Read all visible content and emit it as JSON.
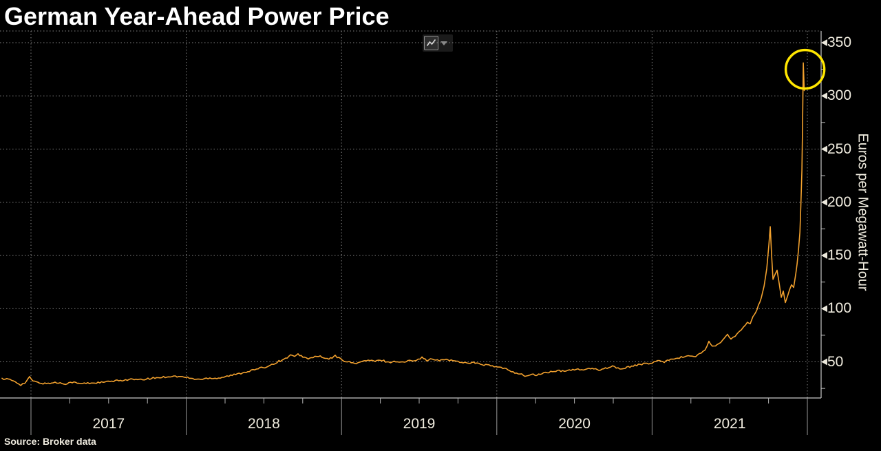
{
  "header": {
    "title": "German Year-Ahead Power Price"
  },
  "toolbar": {
    "chart_type_button": "line-chart-type-selector",
    "icons": [
      "line-chart-icon",
      "chevron-down-icon"
    ]
  },
  "footer": {
    "source": "Source: Broker data"
  },
  "colors": {
    "background": "#000000",
    "line": "#f2a12e",
    "highlight_circle": "#ffe600",
    "axis": "#c9c9c9",
    "grid": "#858585",
    "label": "#f0ecdf",
    "title": "#ffffff"
  },
  "chart_data": {
    "type": "line",
    "title": "German Year-Ahead Power Price",
    "xlabel": "",
    "ylabel": "Euros per Megawatt-Hour",
    "source": "Source: Broker data",
    "grid": "dotted",
    "legend": "none",
    "xlim": [
      2016.8,
      2022.09
    ],
    "ylim": [
      15,
      360
    ],
    "x_year_boundaries": [
      2017,
      2018,
      2019,
      2020,
      2021,
      2022
    ],
    "x_tick_labels": [
      "2017",
      "2018",
      "2019",
      "2020",
      "2021"
    ],
    "x_minor_ticks_per_year": 3,
    "y_ticks": [
      50,
      100,
      150,
      200,
      250,
      300,
      350
    ],
    "y_minor_ticks": [
      25,
      75,
      125,
      175,
      225,
      275,
      325
    ],
    "annotation": {
      "type": "circle",
      "x": 2021.985,
      "value": 325,
      "radius_px": 28,
      "note": "highlights final price spike ~331 EUR"
    },
    "series": [
      {
        "name": "German year-ahead power price (EUR/MWh)",
        "points": [
          [
            2016.814,
            34.5
          ],
          [
            2016.854,
            33.5
          ],
          [
            2016.898,
            31.5
          ],
          [
            2016.934,
            28.5
          ],
          [
            2016.96,
            30
          ],
          [
            2016.991,
            35.5
          ],
          [
            2017.013,
            32
          ],
          [
            2017.044,
            30.5
          ],
          [
            2017.089,
            29.5
          ],
          [
            2017.155,
            30.5
          ],
          [
            2017.222,
            29.5
          ],
          [
            2017.266,
            31
          ],
          [
            2017.31,
            29.5
          ],
          [
            2017.377,
            30
          ],
          [
            2017.443,
            30.5
          ],
          [
            2017.51,
            31.5
          ],
          [
            2017.576,
            32.5
          ],
          [
            2017.643,
            33.5
          ],
          [
            2017.709,
            33
          ],
          [
            2017.776,
            34.5
          ],
          [
            2017.842,
            35.5
          ],
          [
            2017.909,
            36.5
          ],
          [
            2017.962,
            36
          ],
          [
            2017.997,
            35.5
          ],
          [
            2018.042,
            34
          ],
          [
            2018.095,
            33.5
          ],
          [
            2018.152,
            35
          ],
          [
            2018.197,
            34.5
          ],
          [
            2018.263,
            36.5
          ],
          [
            2018.33,
            38.5
          ],
          [
            2018.396,
            41
          ],
          [
            2018.463,
            43.5
          ],
          [
            2018.507,
            45
          ],
          [
            2018.551,
            47.5
          ],
          [
            2018.596,
            50.5
          ],
          [
            2018.64,
            53
          ],
          [
            2018.671,
            56.5
          ],
          [
            2018.698,
            54.5
          ],
          [
            2018.72,
            57
          ],
          [
            2018.751,
            55
          ],
          [
            2018.786,
            52.5
          ],
          [
            2018.817,
            54.5
          ],
          [
            2018.853,
            55.5
          ],
          [
            2018.884,
            53.5
          ],
          [
            2018.919,
            52.5
          ],
          [
            2018.959,
            55.5
          ],
          [
            2018.995,
            52.5
          ],
          [
            2019.039,
            50
          ],
          [
            2019.083,
            48.5
          ],
          [
            2019.128,
            50
          ],
          [
            2019.172,
            51.5
          ],
          [
            2019.216,
            50.5
          ],
          [
            2019.261,
            51.5
          ],
          [
            2019.305,
            49.5
          ],
          [
            2019.349,
            50.5
          ],
          [
            2019.394,
            49.5
          ],
          [
            2019.438,
            51
          ],
          [
            2019.482,
            52
          ],
          [
            2019.518,
            54
          ],
          [
            2019.549,
            51.5
          ],
          [
            2019.584,
            52.5
          ],
          [
            2019.629,
            51
          ],
          [
            2019.673,
            52.5
          ],
          [
            2019.717,
            51
          ],
          [
            2019.761,
            50
          ],
          [
            2019.806,
            49
          ],
          [
            2019.85,
            49.5
          ],
          [
            2019.895,
            47.5
          ],
          [
            2019.939,
            47
          ],
          [
            2019.983,
            45.5
          ],
          [
            2020.028,
            44.5
          ],
          [
            2020.072,
            42.5
          ],
          [
            2020.116,
            40
          ],
          [
            2020.161,
            38
          ],
          [
            2020.191,
            36.5
          ],
          [
            2020.223,
            38
          ],
          [
            2020.258,
            37.5
          ],
          [
            2020.302,
            39.5
          ],
          [
            2020.347,
            40.5
          ],
          [
            2020.391,
            41.5
          ],
          [
            2020.435,
            41
          ],
          [
            2020.489,
            43
          ],
          [
            2020.546,
            42.5
          ],
          [
            2020.604,
            43.5
          ],
          [
            2020.657,
            42.5
          ],
          [
            2020.71,
            44.5
          ],
          [
            2020.746,
            46
          ],
          [
            2020.781,
            44
          ],
          [
            2020.817,
            43.5
          ],
          [
            2020.857,
            45.5
          ],
          [
            2020.901,
            47
          ],
          [
            2020.945,
            48
          ],
          [
            2020.989,
            48.5
          ],
          [
            2021.034,
            51
          ],
          [
            2021.069,
            49.5
          ],
          [
            2021.109,
            52
          ],
          [
            2021.154,
            53.5
          ],
          [
            2021.198,
            54.5
          ],
          [
            2021.233,
            56
          ],
          [
            2021.269,
            54.5
          ],
          [
            2021.304,
            57
          ],
          [
            2021.34,
            61
          ],
          [
            2021.366,
            69
          ],
          [
            2021.388,
            64
          ],
          [
            2021.419,
            66
          ],
          [
            2021.455,
            70
          ],
          [
            2021.486,
            76
          ],
          [
            2021.508,
            71
          ],
          [
            2021.535,
            74
          ],
          [
            2021.561,
            78
          ],
          [
            2021.588,
            82
          ],
          [
            2021.614,
            88
          ],
          [
            2021.632,
            85
          ],
          [
            2021.65,
            92
          ],
          [
            2021.668,
            97
          ],
          [
            2021.685,
            103
          ],
          [
            2021.703,
            110
          ],
          [
            2021.721,
            121
          ],
          [
            2021.739,
            138
          ],
          [
            2021.752,
            160
          ],
          [
            2021.761,
            177
          ],
          [
            2021.77,
            150
          ],
          [
            2021.779,
            128
          ],
          [
            2021.792,
            132
          ],
          [
            2021.805,
            136
          ],
          [
            2021.819,
            123
          ],
          [
            2021.832,
            110
          ],
          [
            2021.845,
            116
          ],
          [
            2021.858,
            106
          ],
          [
            2021.872,
            112
          ],
          [
            2021.885,
            117
          ],
          [
            2021.898,
            123
          ],
          [
            2021.912,
            120
          ],
          [
            2021.925,
            133
          ],
          [
            2021.934,
            142
          ],
          [
            2021.943,
            155
          ],
          [
            2021.952,
            172
          ],
          [
            2021.958,
            196
          ],
          [
            2021.965,
            230
          ],
          [
            2021.969,
            270
          ],
          [
            2021.974,
            331
          ],
          [
            2021.98,
            305
          ]
        ]
      }
    ]
  }
}
